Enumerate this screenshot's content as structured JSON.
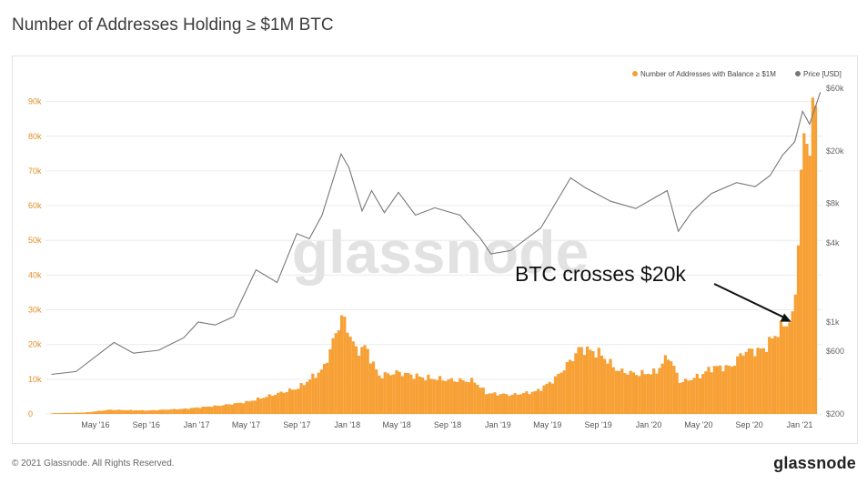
{
  "page": {
    "title": "Number of Addresses Holding ≥ $1M BTC",
    "copyright": "© 2021 Glassnode. All Rights Reserved.",
    "logo_text": "glassnode",
    "watermark": "glassnode"
  },
  "colors": {
    "bars": "#f7a035",
    "price_line": "#777777",
    "left_axis_text": "#e08e24",
    "right_axis_text": "#666666",
    "grid": "#ececec"
  },
  "chart_data": {
    "type": "bar",
    "title": "Number of Addresses Holding ≥ $1M BTC",
    "legend_position": "top-right",
    "grid": true,
    "x_ticks": [
      "May '16",
      "Sep '16",
      "Jan '17",
      "May '17",
      "Sep '17",
      "Jan '18",
      "May '18",
      "Sep '18",
      "Jan '19",
      "May '19",
      "Sep '19",
      "Jan '20",
      "May '20",
      "Sep '20",
      "Jan '21"
    ],
    "y_left": {
      "ticks": [
        "0",
        "10k",
        "20k",
        "30k",
        "40k",
        "50k",
        "60k",
        "70k",
        "80k",
        "90k"
      ],
      "range": [
        0,
        92000
      ]
    },
    "y_right": {
      "ticks": [
        "$200",
        "$600",
        "$1k",
        "$4k",
        "$8k",
        "$20k",
        "$60k"
      ],
      "tick_values": [
        200,
        600,
        1000,
        4000,
        8000,
        20000,
        60000
      ],
      "scale": "log",
      "range": [
        200,
        60000
      ]
    },
    "series": [
      {
        "name": "Number of Addresses with Balance ≥ $1M",
        "kind": "bar",
        "axis": "left",
        "color": "#f7a035",
        "points": [
          [
            "2016-01-15",
            200
          ],
          [
            "2016-04-01",
            400
          ],
          [
            "2016-06-01",
            1200
          ],
          [
            "2016-09-01",
            1000
          ],
          [
            "2016-12-01",
            1500
          ],
          [
            "2017-03-01",
            2500
          ],
          [
            "2017-05-01",
            3500
          ],
          [
            "2017-07-01",
            5500
          ],
          [
            "2017-09-01",
            7500
          ],
          [
            "2017-11-01",
            13000
          ],
          [
            "2017-12-15",
            28000
          ],
          [
            "2018-01-01",
            24000
          ],
          [
            "2018-01-20",
            18000
          ],
          [
            "2018-02-10",
            19500
          ],
          [
            "2018-03-15",
            11000
          ],
          [
            "2018-05-01",
            12000
          ],
          [
            "2018-07-01",
            10500
          ],
          [
            "2018-09-01",
            9800
          ],
          [
            "2018-11-01",
            9500
          ],
          [
            "2018-12-01",
            6000
          ],
          [
            "2019-02-01",
            5500
          ],
          [
            "2019-04-01",
            6500
          ],
          [
            "2019-05-15",
            10000
          ],
          [
            "2019-06-20",
            15000
          ],
          [
            "2019-07-15",
            19000
          ],
          [
            "2019-09-01",
            17500
          ],
          [
            "2019-10-15",
            12500
          ],
          [
            "2019-12-01",
            11500
          ],
          [
            "2020-01-15",
            12000
          ],
          [
            "2020-02-15",
            17000
          ],
          [
            "2020-03-15",
            9000
          ],
          [
            "2020-05-01",
            11000
          ],
          [
            "2020-06-01",
            13500
          ],
          [
            "2020-07-15",
            13500
          ],
          [
            "2020-08-15",
            18000
          ],
          [
            "2020-10-01",
            18500
          ],
          [
            "2020-11-15",
            25000
          ],
          [
            "2020-12-15",
            28000
          ],
          [
            "2021-01-01",
            68000
          ],
          [
            "2021-01-10",
            81000
          ],
          [
            "2021-01-20",
            78000
          ],
          [
            "2021-02-10",
            93000
          ]
        ]
      },
      {
        "name": "Price [USD]",
        "kind": "line",
        "axis": "right",
        "color": "#777777",
        "points": [
          [
            "2016-01-15",
            400
          ],
          [
            "2016-03-15",
            420
          ],
          [
            "2016-06-15",
            700
          ],
          [
            "2016-08-01",
            580
          ],
          [
            "2016-10-01",
            610
          ],
          [
            "2016-12-01",
            760
          ],
          [
            "2017-01-05",
            1000
          ],
          [
            "2017-02-15",
            950
          ],
          [
            "2017-04-01",
            1100
          ],
          [
            "2017-05-25",
            2500
          ],
          [
            "2017-07-15",
            2000
          ],
          [
            "2017-09-01",
            4700
          ],
          [
            "2017-10-01",
            4300
          ],
          [
            "2017-11-01",
            6500
          ],
          [
            "2017-12-17",
            19000
          ],
          [
            "2018-01-05",
            15000
          ],
          [
            "2018-02-06",
            7000
          ],
          [
            "2018-03-01",
            10000
          ],
          [
            "2018-04-01",
            6800
          ],
          [
            "2018-05-05",
            9700
          ],
          [
            "2018-06-15",
            6500
          ],
          [
            "2018-08-01",
            7400
          ],
          [
            "2018-10-01",
            6500
          ],
          [
            "2018-11-20",
            4300
          ],
          [
            "2018-12-15",
            3300
          ],
          [
            "2019-02-01",
            3500
          ],
          [
            "2019-04-15",
            5200
          ],
          [
            "2019-06-26",
            12500
          ],
          [
            "2019-08-01",
            10500
          ],
          [
            "2019-10-01",
            8300
          ],
          [
            "2019-12-01",
            7300
          ],
          [
            "2020-01-15",
            8800
          ],
          [
            "2020-02-15",
            10000
          ],
          [
            "2020-03-13",
            4900
          ],
          [
            "2020-04-15",
            6900
          ],
          [
            "2020-06-01",
            9500
          ],
          [
            "2020-08-01",
            11500
          ],
          [
            "2020-09-15",
            10700
          ],
          [
            "2020-10-21",
            13000
          ],
          [
            "2020-11-20",
            18500
          ],
          [
            "2020-12-20",
            23500
          ],
          [
            "2021-01-08",
            40000
          ],
          [
            "2021-01-25",
            32000
          ],
          [
            "2021-02-20",
            56000
          ]
        ]
      }
    ],
    "annotations": [
      {
        "text": "BTC crosses $20k",
        "target_date": "2020-12-16",
        "target_value": 26000
      }
    ]
  }
}
